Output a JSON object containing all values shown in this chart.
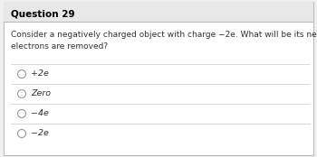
{
  "title": "Question 29",
  "question": "Consider a negatively charged object with charge −2e. What will be its net charge if two of its\nelectrons are removed?",
  "options": [
    "+2e",
    "Zero",
    "−4e",
    "−2e"
  ],
  "bg_color": "#f0f0f0",
  "card_bg": "#ffffff",
  "header_bg": "#e8e8e8",
  "border_color": "#bbbbbb",
  "sep_color": "#cccccc",
  "title_fontsize": 7.5,
  "question_fontsize": 6.5,
  "option_fontsize": 6.8
}
